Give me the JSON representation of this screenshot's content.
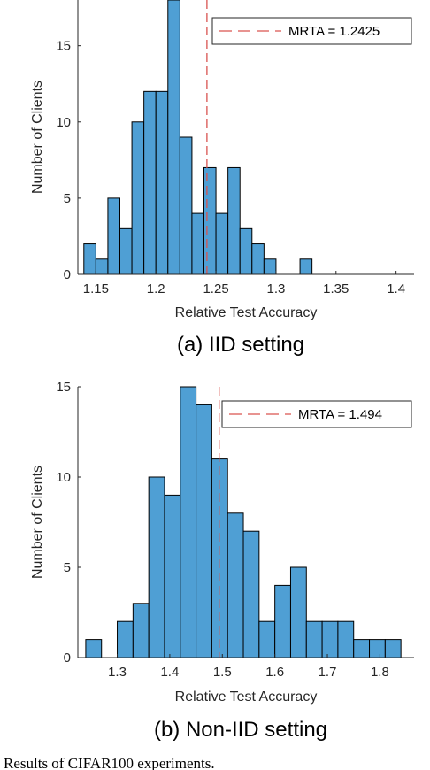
{
  "chart_data": [
    {
      "type": "bar",
      "subtitle": "(a) IID setting",
      "xlabel": "Relative Test Accuracy",
      "ylabel": "Number of Clients",
      "xlim": [
        1.135,
        1.415
      ],
      "ylim": [
        0,
        18
      ],
      "xticks": [
        1.15,
        1.2,
        1.25,
        1.3,
        1.35,
        1.4
      ],
      "xtick_labels": [
        "1.15",
        "1.2",
        "1.25",
        "1.3",
        "1.35",
        "1.4"
      ],
      "yticks": [
        0,
        5,
        10,
        15
      ],
      "ytick_labels": [
        "0",
        "5",
        "10",
        "15"
      ],
      "bin_start": 1.14,
      "bin_width": 0.01,
      "values": [
        2,
        1,
        5,
        3,
        10,
        12,
        12,
        18,
        9,
        4,
        7,
        4,
        7,
        3,
        2,
        1,
        0,
        0,
        1
      ],
      "bar_color": "#4f9fd4",
      "mean_line": {
        "x": 1.2425,
        "label": "MRTA = 1.2425",
        "color": "#d9534f"
      },
      "legend_position": "top-right",
      "grid": false
    },
    {
      "type": "bar",
      "subtitle": "(b) Non-IID setting",
      "xlabel": "Relative Test Accuracy",
      "ylabel": "Number of Clients",
      "xlim": [
        1.225,
        1.865
      ],
      "ylim": [
        0,
        15
      ],
      "xticks": [
        1.3,
        1.4,
        1.5,
        1.6,
        1.7,
        1.8
      ],
      "xtick_labels": [
        "1.3",
        "1.4",
        "1.5",
        "1.6",
        "1.7",
        "1.8"
      ],
      "yticks": [
        0,
        5,
        10,
        15
      ],
      "ytick_labels": [
        "0",
        "5",
        "10",
        "15"
      ],
      "bin_start": 1.24,
      "bin_width": 0.03,
      "values": [
        1,
        0,
        2,
        3,
        10,
        9,
        15,
        14,
        11,
        8,
        7,
        2,
        4,
        5,
        2,
        2,
        2,
        1,
        1,
        1
      ],
      "bar_color": "#4f9fd4",
      "mean_line": {
        "x": 1.494,
        "label": "MRTA = 1.494",
        "color": "#d9534f"
      },
      "legend_position": "top-right",
      "grid": false
    }
  ],
  "figure_caption": "Results of CIFAR100 experiments."
}
